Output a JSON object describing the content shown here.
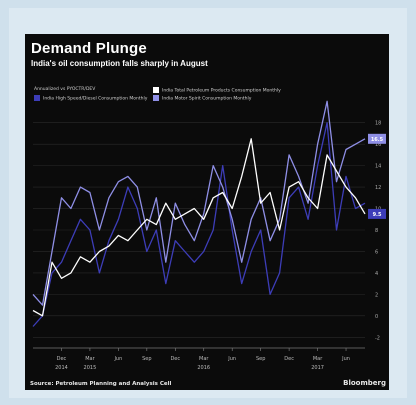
{
  "chart_data": {
    "type": "line",
    "title": "Demand Plunge",
    "subtitle": "India's oil consumption falls sharply in August",
    "legend_note": "Annualized vs PYOCTR/DEV",
    "x": [
      "Sep 2014",
      "Oct 2014",
      "Nov 2014",
      "Dec 2014",
      "Jan 2015",
      "Feb 2015",
      "Mar 2015",
      "Apr 2015",
      "May 2015",
      "Jun 2015",
      "Jul 2015",
      "Aug 2015",
      "Sep 2015",
      "Oct 2015",
      "Nov 2015",
      "Dec 2015",
      "Jan 2016",
      "Feb 2016",
      "Mar 2016",
      "Apr 2016",
      "May 2016",
      "Jun 2016",
      "Jul 2016",
      "Aug 2016",
      "Sep 2016",
      "Oct 2016",
      "Nov 2016",
      "Dec 2016",
      "Jan 2017",
      "Feb 2017",
      "Mar 2017",
      "Apr 2017",
      "May 2017",
      "Jun 2017",
      "Jul 2017",
      "Aug 2017"
    ],
    "x_ticks": [
      {
        "label": "Dec",
        "index": 3
      },
      {
        "label": "Mar",
        "index": 6
      },
      {
        "label": "Jun",
        "index": 9
      },
      {
        "label": "Sep",
        "index": 12
      },
      {
        "label": "Dec",
        "index": 15
      },
      {
        "label": "Mar",
        "index": 18
      },
      {
        "label": "Jun",
        "index": 21
      },
      {
        "label": "Sep",
        "index": 24
      },
      {
        "label": "Dec",
        "index": 27
      },
      {
        "label": "Mar",
        "index": 30
      },
      {
        "label": "Jun",
        "index": 33
      }
    ],
    "x_years": [
      {
        "label": "2014",
        "index": 3
      },
      {
        "label": "2015",
        "index": 6
      },
      {
        "label": "2016",
        "index": 18
      },
      {
        "label": "2017",
        "index": 30
      }
    ],
    "y_ticks": [
      -2,
      0,
      2,
      4,
      6,
      8,
      10,
      12,
      14,
      16,
      18
    ],
    "ylim": [
      -3,
      19
    ],
    "grid": true,
    "series": [
      {
        "name": "India Total Petroleum Products Consumption Monthly",
        "color": "#ffffff",
        "values": [
          0.5,
          0.0,
          5,
          3.5,
          4,
          5.5,
          5,
          6,
          6.5,
          7.5,
          7,
          8,
          9,
          8.5,
          10.5,
          9,
          9.5,
          10,
          9,
          11,
          11.5,
          10,
          13,
          16.5,
          10.5,
          11.5,
          8,
          12,
          12.5,
          11,
          10,
          15,
          13.5,
          12,
          11,
          9.5
        ]
      },
      {
        "name": "India Motor Spirit Consumption Monthly",
        "color": "#8f8fe6",
        "values": [
          2,
          1,
          6,
          11,
          10,
          12,
          11.5,
          8,
          11,
          12.5,
          13,
          12,
          8,
          11,
          5,
          10.5,
          8.5,
          7,
          9.5,
          14,
          12,
          9,
          5,
          9,
          11,
          7,
          9,
          15,
          13,
          10.5,
          16,
          20,
          12.5,
          15.5,
          16,
          16.5
        ]
      },
      {
        "name": "India High Speed/Diesel Consumption Monthly",
        "color": "#3d3db8",
        "values": [
          -1,
          0,
          4,
          5,
          7,
          9,
          8,
          4,
          7,
          9,
          12,
          10,
          6,
          8,
          3,
          7,
          6,
          5,
          6,
          8,
          14,
          8,
          3,
          6,
          8,
          2,
          4,
          11,
          12,
          9,
          14,
          18,
          8,
          13,
          10,
          10.5
        ]
      }
    ],
    "end_labels": [
      "16.5",
      "9.5"
    ],
    "source": "Source: Petroleum Planning and Analysis Cell",
    "brand": "Bloomberg"
  }
}
